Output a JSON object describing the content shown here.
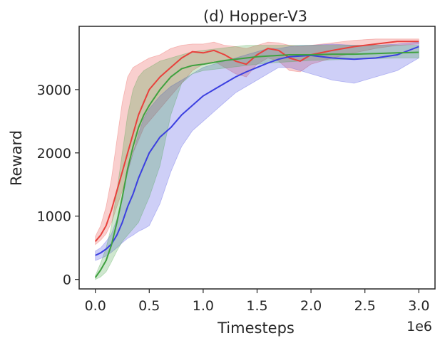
{
  "chart_data": {
    "type": "line",
    "title": "(d) Hopper-V3",
    "xlabel": "Timesteps",
    "ylabel": "Reward",
    "x_offset_label": "1e6",
    "xlim": [
      -0.15,
      3.15
    ],
    "ylim": [
      -150,
      4000
    ],
    "xticks": [
      0.0,
      0.5,
      1.0,
      1.5,
      2.0,
      2.5,
      3.0
    ],
    "xtick_labels": [
      "0.0",
      "0.5",
      "1.0",
      "1.5",
      "2.0",
      "2.5",
      "3.0"
    ],
    "yticks": [
      0,
      1000,
      2000,
      3000
    ],
    "ytick_labels": [
      "0",
      "1000",
      "2000",
      "3000"
    ],
    "grid": false,
    "series": [
      {
        "color": "#e8413c",
        "x": [
          0.0,
          0.05,
          0.1,
          0.15,
          0.2,
          0.25,
          0.3,
          0.35,
          0.4,
          0.45,
          0.5,
          0.6,
          0.7,
          0.8,
          0.9,
          1.0,
          1.1,
          1.2,
          1.3,
          1.4,
          1.5,
          1.6,
          1.7,
          1.8,
          1.9,
          2.0,
          2.2,
          2.4,
          2.6,
          2.8,
          3.0
        ],
        "y": [
          600,
          700,
          850,
          1100,
          1400,
          1700,
          2000,
          2300,
          2600,
          2800,
          3000,
          3200,
          3350,
          3500,
          3600,
          3580,
          3620,
          3550,
          3450,
          3400,
          3550,
          3650,
          3620,
          3500,
          3450,
          3550,
          3620,
          3680,
          3720,
          3760,
          3760
        ],
        "lower": [
          550,
          620,
          720,
          900,
          1150,
          1400,
          1700,
          2000,
          2200,
          2400,
          2500,
          2700,
          2900,
          3100,
          3300,
          3400,
          3450,
          3350,
          3250,
          3200,
          3400,
          3500,
          3450,
          3300,
          3280,
          3400,
          3500,
          3580,
          3650,
          3700,
          3720
        ],
        "upper": [
          680,
          850,
          1150,
          1600,
          2200,
          2800,
          3200,
          3350,
          3400,
          3450,
          3500,
          3550,
          3650,
          3700,
          3720,
          3720,
          3750,
          3700,
          3680,
          3650,
          3700,
          3750,
          3740,
          3700,
          3680,
          3700,
          3740,
          3780,
          3800,
          3800,
          3800
        ]
      },
      {
        "color": "#3b3fe0",
        "x": [
          0.0,
          0.05,
          0.1,
          0.15,
          0.2,
          0.25,
          0.3,
          0.35,
          0.4,
          0.45,
          0.5,
          0.6,
          0.7,
          0.8,
          0.9,
          1.0,
          1.1,
          1.2,
          1.3,
          1.4,
          1.5,
          1.6,
          1.7,
          1.8,
          1.9,
          2.0,
          2.2,
          2.4,
          2.6,
          2.8,
          3.0
        ],
        "y": [
          380,
          420,
          480,
          560,
          700,
          900,
          1150,
          1350,
          1600,
          1800,
          2000,
          2250,
          2400,
          2600,
          2750,
          2900,
          3000,
          3100,
          3200,
          3280,
          3350,
          3420,
          3480,
          3520,
          3530,
          3540,
          3500,
          3480,
          3500,
          3550,
          3680
        ],
        "lower": [
          300,
          330,
          370,
          430,
          500,
          580,
          650,
          700,
          760,
          800,
          850,
          1200,
          1700,
          2100,
          2350,
          2500,
          2650,
          2800,
          2950,
          3050,
          3150,
          3250,
          3350,
          3350,
          3300,
          3250,
          3150,
          3100,
          3200,
          3300,
          3500
        ],
        "upper": [
          450,
          500,
          600,
          720,
          950,
          1300,
          1700,
          2000,
          2300,
          2550,
          2700,
          2900,
          3050,
          3150,
          3250,
          3350,
          3400,
          3450,
          3500,
          3550,
          3600,
          3650,
          3650,
          3680,
          3700,
          3700,
          3720,
          3700,
          3700,
          3720,
          3750
        ]
      },
      {
        "color": "#3fa13f",
        "x": [
          0.0,
          0.05,
          0.1,
          0.15,
          0.2,
          0.25,
          0.3,
          0.35,
          0.4,
          0.45,
          0.5,
          0.6,
          0.7,
          0.8,
          0.9,
          1.0,
          1.1,
          1.2,
          1.3,
          1.4,
          1.5,
          1.6,
          1.7,
          1.8,
          1.9,
          2.0,
          2.2,
          2.4,
          2.6,
          2.8,
          3.0
        ],
        "y": [
          30,
          150,
          300,
          550,
          900,
          1300,
          1750,
          2100,
          2400,
          2600,
          2750,
          3000,
          3200,
          3330,
          3380,
          3400,
          3430,
          3460,
          3480,
          3500,
          3520,
          3530,
          3540,
          3550,
          3550,
          3550,
          3560,
          3560,
          3570,
          3580,
          3590
        ],
        "lower": [
          0,
          40,
          120,
          280,
          450,
          600,
          700,
          800,
          900,
          1100,
          1300,
          1800,
          2600,
          3100,
          3250,
          3300,
          3320,
          3340,
          3360,
          3380,
          3400,
          3420,
          3430,
          3440,
          3450,
          3460,
          3470,
          3480,
          3490,
          3500,
          3500
        ],
        "upper": [
          60,
          260,
          500,
          850,
          1400,
          2000,
          2600,
          3000,
          3200,
          3300,
          3350,
          3450,
          3500,
          3550,
          3600,
          3620,
          3640,
          3660,
          3680,
          3700,
          3700,
          3700,
          3700,
          3700,
          3700,
          3700,
          3700,
          3700,
          3700,
          3700,
          3700
        ]
      }
    ]
  }
}
